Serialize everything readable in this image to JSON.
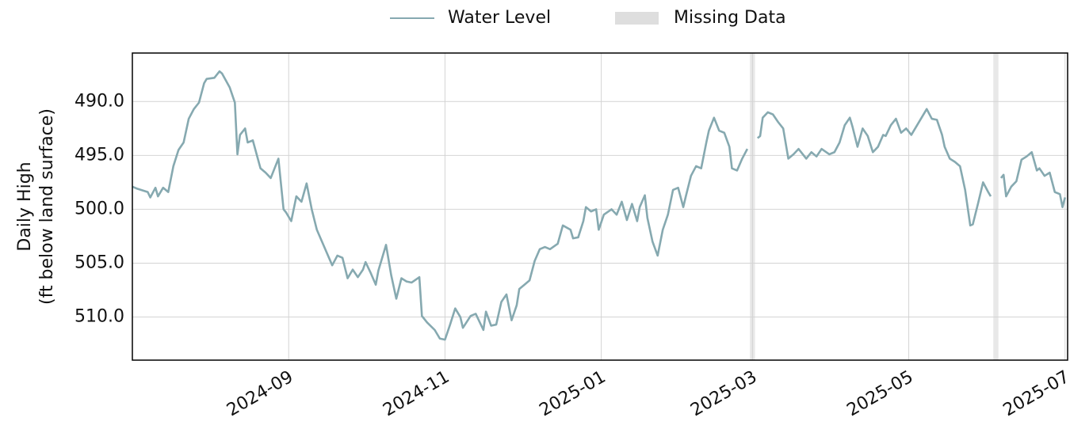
{
  "chart_data": {
    "type": "line",
    "ylabel": [
      "Daily High",
      "(ft below land surface)"
    ],
    "invert_y": true,
    "grid": true,
    "legend": "top",
    "xlim": [
      "2024-07-02",
      "2025-07-02"
    ],
    "xticks": [
      {
        "value": "2024-09-01",
        "label": "2024-09"
      },
      {
        "value": "2024-11-01",
        "label": "2024-11"
      },
      {
        "value": "2025-01-01",
        "label": "2025-01"
      },
      {
        "value": "2025-03-01",
        "label": "2025-03"
      },
      {
        "value": "2025-05-01",
        "label": "2025-05"
      },
      {
        "value": "2025-07-01",
        "label": "2025-07"
      }
    ],
    "ylim": [
      485.5,
      514
    ],
    "yticks": [
      {
        "value": 490,
        "label": "490.0"
      },
      {
        "value": 495,
        "label": "495.0"
      },
      {
        "value": 500,
        "label": "500.0"
      },
      {
        "value": 505,
        "label": "505.0"
      },
      {
        "value": 510,
        "label": "510.0"
      }
    ],
    "missing_data": {
      "name": "Missing Data",
      "color": "#dedede",
      "ranges": [
        [
          "2025-02-28",
          "2025-03-02"
        ],
        [
          "2025-06-03",
          "2025-06-05"
        ]
      ]
    },
    "x": [
      "2024-07-02",
      "2024-07-04",
      "2024-07-08",
      "2024-07-09",
      "2024-07-11",
      "2024-07-12",
      "2024-07-14",
      "2024-07-16",
      "2024-07-18",
      "2024-07-20",
      "2024-07-22",
      "2024-07-24",
      "2024-07-26",
      "2024-07-28",
      "2024-07-30",
      "2024-07-31",
      "2024-08-03",
      "2024-08-05",
      "2024-08-06",
      "2024-08-09",
      "2024-08-11",
      "2024-08-12",
      "2024-08-13",
      "2024-08-15",
      "2024-08-16",
      "2024-08-18",
      "2024-08-21",
      "2024-08-23",
      "2024-08-25",
      "2024-08-28",
      "2024-08-30",
      "2024-08-31",
      "2024-09-02",
      "2024-09-04",
      "2024-09-06",
      "2024-09-08",
      "2024-09-10",
      "2024-09-12",
      "2024-09-14",
      "2024-09-16",
      "2024-09-18",
      "2024-09-20",
      "2024-09-22",
      "2024-09-24",
      "2024-09-26",
      "2024-09-28",
      "2024-09-30",
      "2024-10-01",
      "2024-10-03",
      "2024-10-05",
      "2024-10-06",
      "2024-10-09",
      "2024-10-11",
      "2024-10-13",
      "2024-10-15",
      "2024-10-17",
      "2024-10-19",
      "2024-10-22",
      "2024-10-23",
      "2024-10-25",
      "2024-10-28",
      "2024-10-30",
      "2024-11-01",
      "2024-11-03",
      "2024-11-05",
      "2024-11-07",
      "2024-11-08",
      "2024-11-11",
      "2024-11-13",
      "2024-11-16",
      "2024-11-17",
      "2024-11-19",
      "2024-11-21",
      "2024-11-23",
      "2024-11-25",
      "2024-11-27",
      "2024-11-29",
      "2024-11-30",
      "2024-12-02",
      "2024-12-04",
      "2024-12-06",
      "2024-12-08",
      "2024-12-10",
      "2024-12-12",
      "2024-12-15",
      "2024-12-17",
      "2024-12-20",
      "2024-12-21",
      "2024-12-23",
      "2024-12-25",
      "2024-12-26",
      "2024-12-28",
      "2024-12-30",
      "2024-12-31",
      "2025-01-02",
      "2025-01-05",
      "2025-01-07",
      "2025-01-09",
      "2025-01-11",
      "2025-01-13",
      "2025-01-15",
      "2025-01-16",
      "2025-01-18",
      "2025-01-19",
      "2025-01-21",
      "2025-01-23",
      "2025-01-25",
      "2025-01-27",
      "2025-01-29",
      "2025-01-31",
      "2025-02-02",
      "2025-02-03",
      "2025-02-05",
      "2025-02-07",
      "2025-02-09",
      "2025-02-11",
      "2025-02-12",
      "2025-02-14",
      "2025-02-16",
      "2025-02-18",
      "2025-02-20",
      "2025-02-21",
      "2025-02-23",
      "2025-02-25",
      "2025-02-27",
      "2025-03-01",
      "2025-03-03",
      "2025-03-04",
      "2025-03-05",
      "2025-03-07",
      "2025-03-09",
      "2025-03-11",
      "2025-03-13",
      "2025-03-15",
      "2025-03-17",
      "2025-03-19",
      "2025-03-22",
      "2025-03-24",
      "2025-03-26",
      "2025-03-28",
      "2025-03-31",
      "2025-04-02",
      "2025-04-04",
      "2025-04-06",
      "2025-04-08",
      "2025-04-09",
      "2025-04-11",
      "2025-04-13",
      "2025-04-15",
      "2025-04-17",
      "2025-04-19",
      "2025-04-21",
      "2025-04-22",
      "2025-04-24",
      "2025-04-26",
      "2025-04-28",
      "2025-04-30",
      "2025-05-02",
      "2025-05-04",
      "2025-05-06",
      "2025-05-08",
      "2025-05-10",
      "2025-05-12",
      "2025-05-14",
      "2025-05-15",
      "2025-05-17",
      "2025-05-19",
      "2025-05-21",
      "2025-05-23",
      "2025-05-25",
      "2025-05-26",
      "2025-05-28",
      "2025-05-30",
      "2025-06-01",
      "2025-06-02",
      "2025-06-04",
      "2025-06-06",
      "2025-06-07",
      "2025-06-08",
      "2025-06-10",
      "2025-06-12",
      "2025-06-14",
      "2025-06-16",
      "2025-06-18",
      "2025-06-20",
      "2025-06-21",
      "2025-06-23",
      "2025-06-25",
      "2025-06-27",
      "2025-06-29",
      "2025-06-30",
      "2025-07-01"
    ],
    "series": [
      {
        "name": "Water Level",
        "color": "#86a9b0",
        "values": [
          497.9,
          498.1,
          498.4,
          498.9,
          498.0,
          498.8,
          498.0,
          498.4,
          496.0,
          494.5,
          493.8,
          491.6,
          490.7,
          490.1,
          488.3,
          487.9,
          487.8,
          487.2,
          487.4,
          488.7,
          490.1,
          494.9,
          493.1,
          492.5,
          493.8,
          493.6,
          496.2,
          496.6,
          497.1,
          495.3,
          500.0,
          500.3,
          501.1,
          498.8,
          499.3,
          497.6,
          500.0,
          501.9,
          503.0,
          504.1,
          505.2,
          504.3,
          504.5,
          506.4,
          505.6,
          506.3,
          505.6,
          504.9,
          505.9,
          507.0,
          505.7,
          503.3,
          506.1,
          508.3,
          506.4,
          506.7,
          506.8,
          506.3,
          509.9,
          510.5,
          511.2,
          512.0,
          512.1,
          510.7,
          509.2,
          510.0,
          511.0,
          509.9,
          509.7,
          511.2,
          509.5,
          510.8,
          510.7,
          508.6,
          507.9,
          510.3,
          508.9,
          507.4,
          507.0,
          506.6,
          504.8,
          503.7,
          503.5,
          503.7,
          503.2,
          501.5,
          501.9,
          502.7,
          502.6,
          501.1,
          499.8,
          500.2,
          500.0,
          501.9,
          500.5,
          500.0,
          500.5,
          499.3,
          501.0,
          499.5,
          501.1,
          499.8,
          498.7,
          500.8,
          503.0,
          504.3,
          501.9,
          500.5,
          498.2,
          498.0,
          499.8,
          498.8,
          496.9,
          496.0,
          496.2,
          493.8,
          492.7,
          491.5,
          492.7,
          492.9,
          494.2,
          496.2,
          496.4,
          495.3,
          494.4,
          null,
          493.4,
          493.2,
          491.5,
          491.0,
          491.2,
          491.9,
          492.5,
          495.3,
          494.9,
          494.4,
          495.3,
          494.7,
          495.1,
          494.4,
          494.9,
          494.7,
          493.8,
          492.2,
          491.5,
          492.3,
          494.2,
          492.5,
          493.2,
          494.7,
          494.2,
          493.1,
          493.2,
          492.2,
          491.6,
          492.9,
          492.5,
          493.1,
          492.3,
          491.5,
          490.7,
          491.6,
          491.7,
          493.1,
          494.2,
          495.3,
          495.6,
          496.0,
          498.2,
          501.5,
          501.4,
          499.5,
          497.5,
          498.4,
          498.8,
          null,
          497.1,
          496.8,
          498.8,
          497.9,
          497.4,
          495.4,
          495.1,
          494.7,
          496.4,
          496.2,
          496.9,
          496.6,
          498.4,
          498.6,
          499.8,
          498.9
        ]
      }
    ]
  }
}
